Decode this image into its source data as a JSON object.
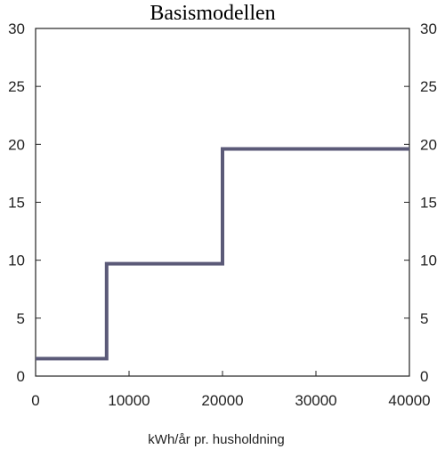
{
  "chart_data": {
    "type": "line",
    "step": true,
    "title": "Basismodellen",
    "xlabel": "kWh/år pr. husholdning",
    "ylabel": "",
    "xlim": [
      0,
      40000
    ],
    "ylim": [
      0,
      30
    ],
    "x_ticks": [
      0,
      10000,
      20000,
      30000,
      40000
    ],
    "y_ticks": [
      0,
      5,
      10,
      15,
      20,
      25,
      30
    ],
    "right_axis_ticks": [
      0,
      5,
      10,
      15,
      20,
      25,
      30
    ],
    "grid": false,
    "series": [
      {
        "color": "#5b5a78",
        "x": [
          0,
          7600,
          7600,
          20000,
          20000,
          40000
        ],
        "y": [
          1.5,
          1.5,
          9.7,
          9.7,
          19.6,
          19.6
        ]
      }
    ]
  }
}
